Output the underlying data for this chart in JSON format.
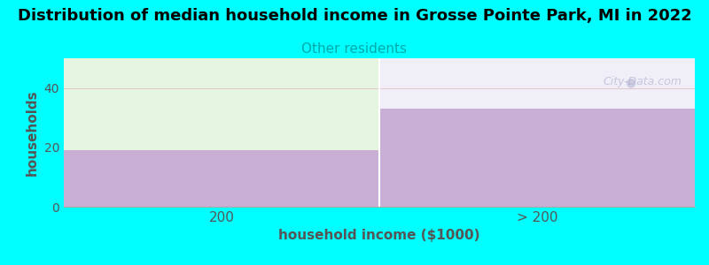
{
  "title": "Distribution of median household income in Grosse Pointe Park, MI in 2022",
  "subtitle": "Other residents",
  "xlabel": "household income ($1000)",
  "ylabel": "households",
  "categories": [
    "200",
    "> 200"
  ],
  "bar_values": [
    19,
    33
  ],
  "bar_color": "#c9aed6",
  "bar_top_color_left": "#e6f5e0",
  "bar_top_color_right": "#f0eff8",
  "ylim": [
    0,
    50
  ],
  "yticks": [
    0,
    20,
    40
  ],
  "background_color": "#00ffff",
  "plot_bg_color": "#f5fff5",
  "title_fontsize": 13,
  "subtitle_color": "#00aaaa",
  "subtitle_fontsize": 11,
  "axis_label_color": "#555555",
  "tick_color": "#555555",
  "watermark": "City-Data.com"
}
